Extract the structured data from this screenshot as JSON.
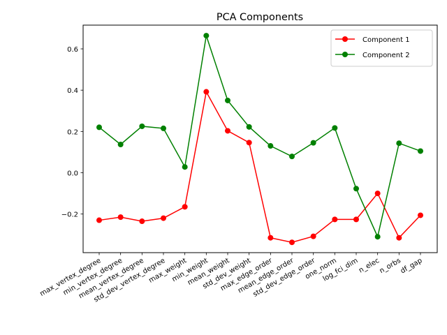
{
  "chart_data": {
    "type": "line",
    "title": "PCA Components",
    "xlabel": "",
    "ylabel": "",
    "categories": [
      "max_vertex_degree",
      "min_vertex_degree",
      "mean_vertex_degree",
      "std_dev_vertex_degree",
      "max_weight",
      "min_weight",
      "mean_weight",
      "std_dev_weight",
      "max_edge_order",
      "mean_edge_order",
      "std_dev_edge_order",
      "one_norm",
      "log_fci_dim",
      "n_elec",
      "n_orbs",
      "df_gap"
    ],
    "series": [
      {
        "name": "Component 1",
        "color": "#ff0000",
        "values": [
          -0.23,
          -0.215,
          -0.235,
          -0.22,
          -0.165,
          0.392,
          0.203,
          0.146,
          -0.315,
          -0.337,
          -0.308,
          -0.226,
          -0.226,
          -0.1,
          -0.315,
          -0.206
        ]
      },
      {
        "name": "Component 2",
        "color": "#008000",
        "values": [
          0.22,
          0.137,
          0.225,
          0.215,
          0.028,
          0.664,
          0.35,
          0.222,
          0.13,
          0.079,
          0.145,
          0.217,
          -0.077,
          -0.31,
          0.143,
          0.105
        ]
      }
    ],
    "yticks": [
      "−0.2",
      "0.0",
      "0.2",
      "0.4",
      "0.6"
    ],
    "ytick_values": [
      -0.2,
      0.0,
      0.2,
      0.4,
      0.6
    ],
    "ylim": [
      -0.387,
      0.715
    ],
    "grid": false,
    "legend_position": "top-right",
    "marker": "circle"
  }
}
